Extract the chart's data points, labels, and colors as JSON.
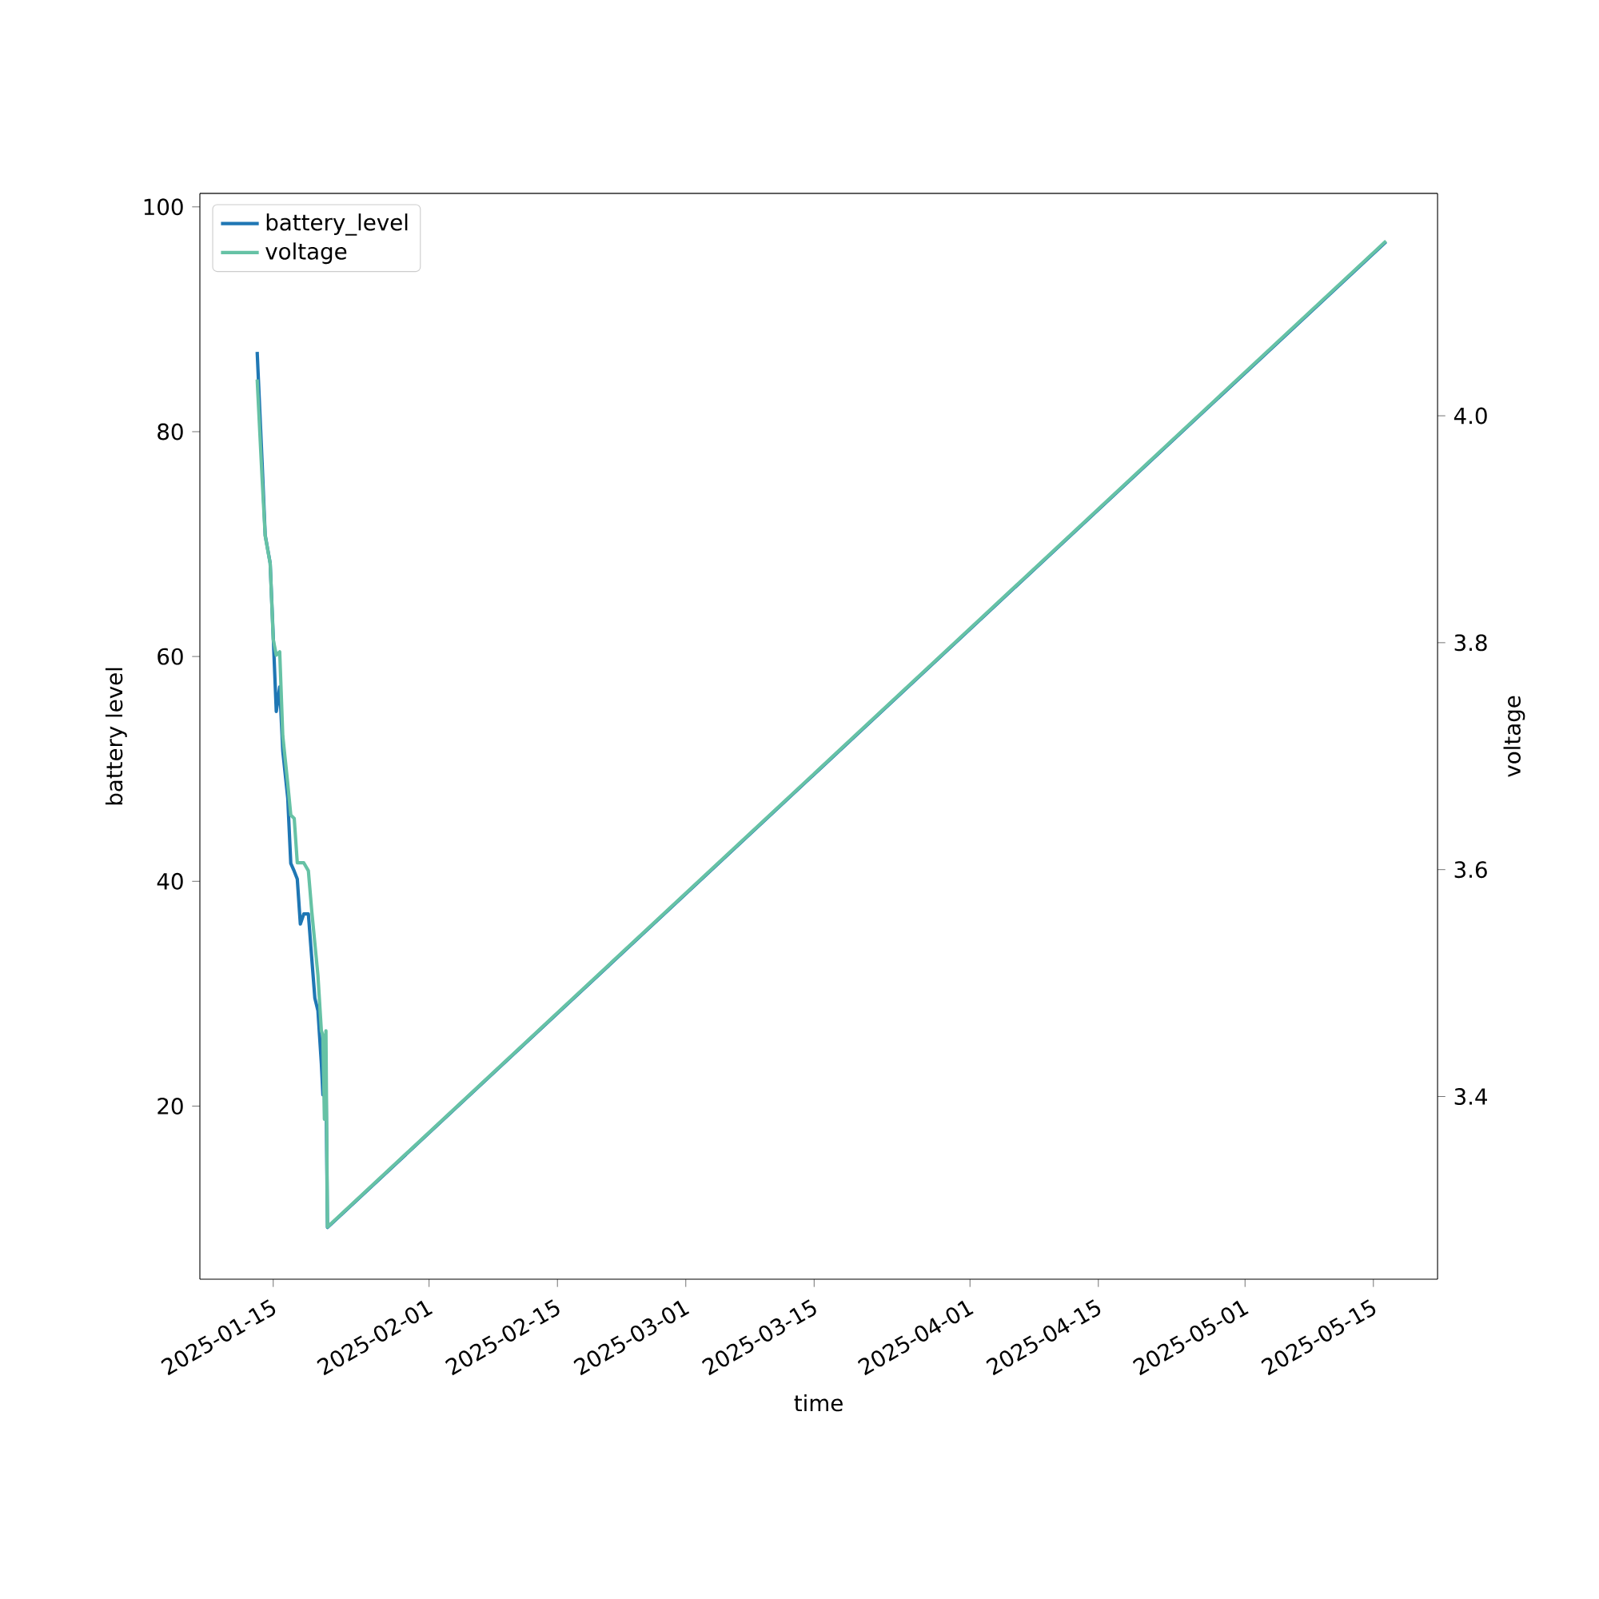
{
  "chart_data": {
    "type": "line",
    "xlabel": "time",
    "ylabel": "battery level",
    "y2label": "voltage",
    "xlim": [
      "2025-01-07",
      "2025-05-22"
    ],
    "xticks": [
      "2025-01-15",
      "2025-02-01",
      "2025-02-15",
      "2025-03-01",
      "2025-03-15",
      "2025-04-01",
      "2025-04-15",
      "2025-05-01",
      "2025-05-15"
    ],
    "ylim": [
      4.6,
      101.2
    ],
    "yticks": [
      20,
      40,
      60,
      80,
      100
    ],
    "y2lim": [
      3.239,
      4.196
    ],
    "y2ticks": [
      3.4,
      3.6,
      3.8,
      {
        "value": 4.0,
        "label": "4.0"
      }
    ],
    "legend": "top left",
    "series": [
      {
        "name": "battery_level",
        "color": "#1f77b4",
        "x": [
          "2025-01-13T06:00",
          "2025-01-13T19:00",
          "2025-01-14T03:00",
          "2025-01-14T16:00",
          "2025-01-15T00:00",
          "2025-01-15T08:00",
          "2025-01-15T17:00",
          "2025-01-16T01:00",
          "2025-01-16T14:00",
          "2025-01-16T22:00",
          "2025-01-17T07:00",
          "2025-01-17T15:00",
          "2025-01-17T23:00",
          "2025-01-18T08:00",
          "2025-01-18T20:00",
          "2025-01-19T05:00",
          "2025-01-19T13:00",
          "2025-01-19T21:00",
          "2025-01-20T06:00",
          "2025-01-20T10:00",
          "2025-01-20T18:00",
          "2025-01-20T22:00",
          "2025-05-16T09:00"
        ],
        "values": [
          87.1,
          77.2,
          70.8,
          68.3,
          61.8,
          55.1,
          57.3,
          51.6,
          47.4,
          41.6,
          40.9,
          40.2,
          36.2,
          37.1,
          37.1,
          33.1,
          29.6,
          28.5,
          23.8,
          21.0,
          22.4,
          9.2,
          96.9
        ]
      },
      {
        "name": "voltage",
        "color": "#66c2a5",
        "axis": "y2",
        "x": [
          "2025-01-13T06:00",
          "2025-01-13T19:00",
          "2025-01-14T03:00",
          "2025-01-14T16:00",
          "2025-01-15T00:00",
          "2025-01-15T08:00",
          "2025-01-15T17:00",
          "2025-01-16T01:00",
          "2025-01-16T14:00",
          "2025-01-16T22:00",
          "2025-01-17T07:00",
          "2025-01-17T15:00",
          "2025-01-17T23:00",
          "2025-01-18T08:00",
          "2025-01-18T20:00",
          "2025-01-19T05:00",
          "2025-01-19T13:00",
          "2025-01-19T21:00",
          "2025-01-20T06:00",
          "2025-01-20T10:00",
          "2025-01-20T14:00",
          "2025-01-20T18:00",
          "2025-01-20T22:00",
          "2025-05-16T09:00"
        ],
        "values": [
          4.032,
          3.944,
          3.894,
          3.87,
          3.803,
          3.789,
          3.792,
          3.718,
          3.676,
          3.648,
          3.645,
          3.606,
          3.606,
          3.606,
          3.599,
          3.563,
          3.535,
          3.507,
          3.458,
          3.454,
          3.38,
          3.458,
          3.285,
          4.154
        ]
      }
    ]
  }
}
